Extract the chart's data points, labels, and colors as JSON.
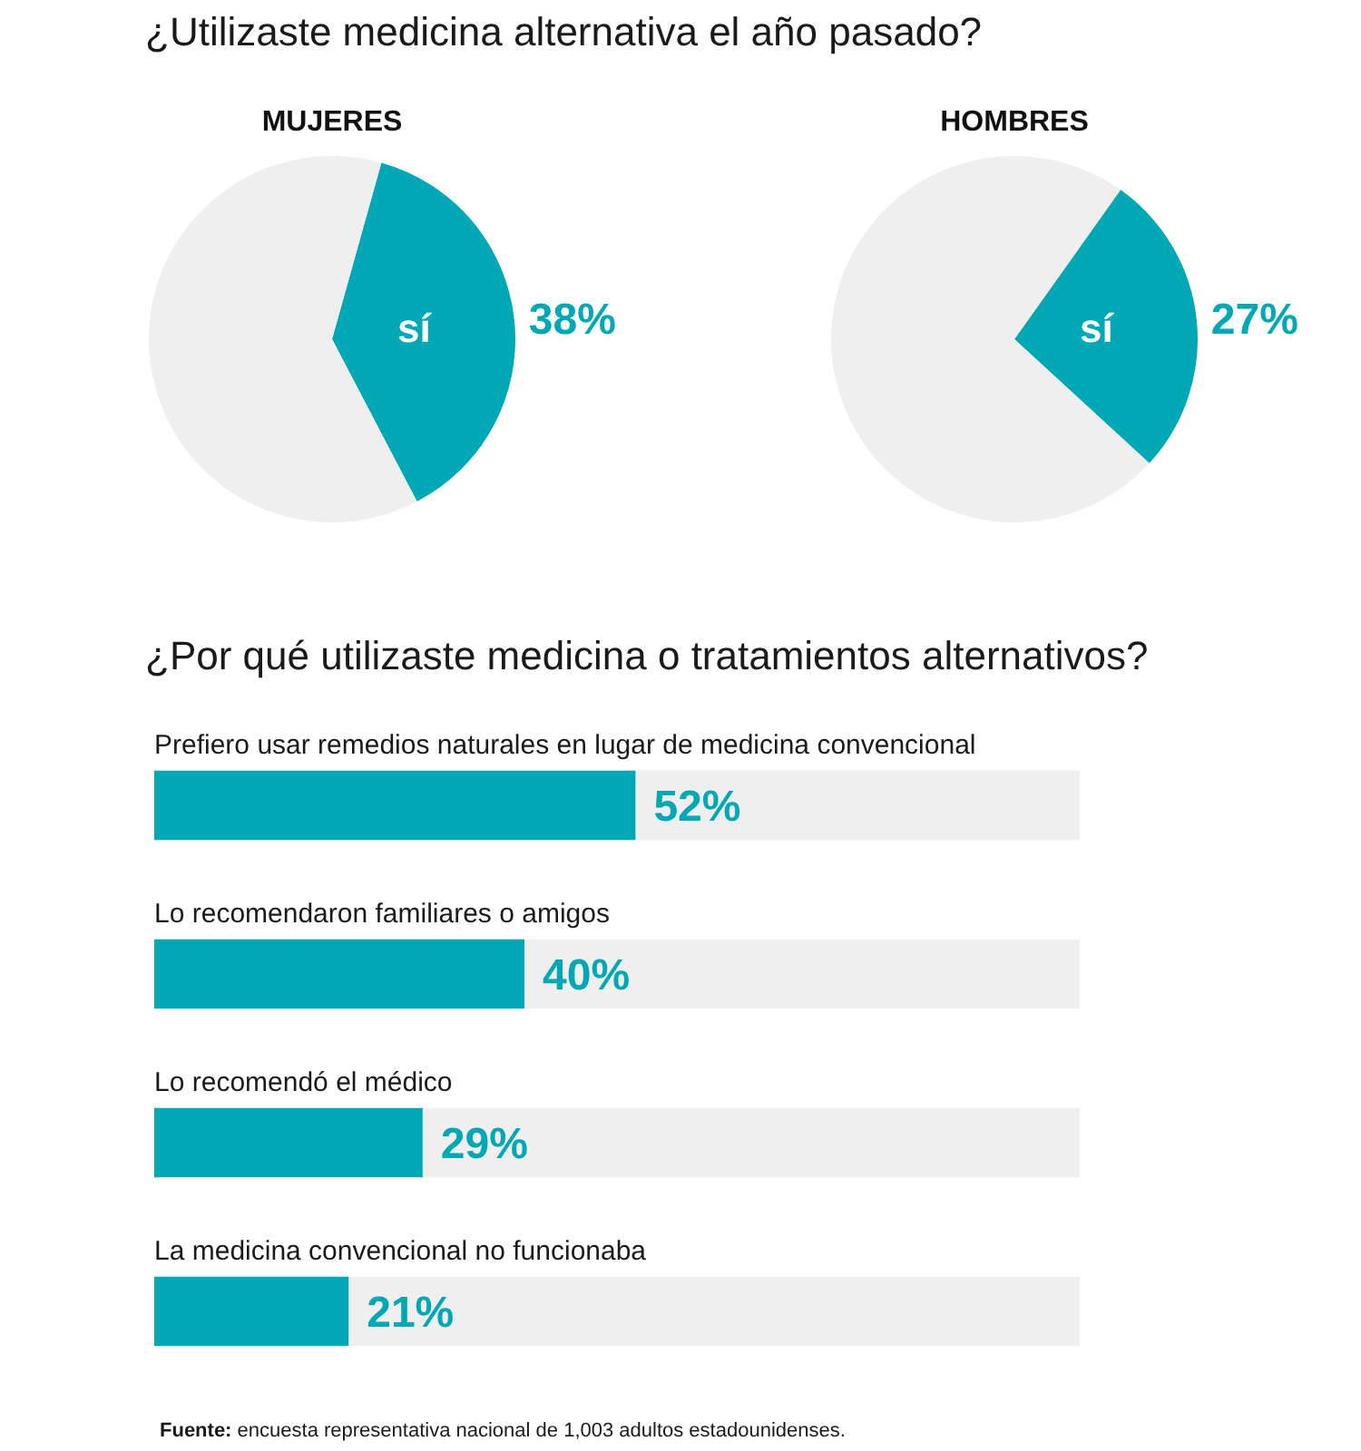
{
  "chart_data": [
    {
      "type": "pie",
      "title": "¿Utilizaste medicina alternativa el año pasado?",
      "subtitle": "MUJERES",
      "categories": [
        "sí",
        null
      ],
      "values": [
        38,
        62
      ],
      "colors": [
        "#00a8b5",
        "#efefef"
      ],
      "value_labels": [
        "38%",
        null
      ]
    },
    {
      "type": "pie",
      "subtitle": "HOMBRES",
      "categories": [
        "sí",
        null
      ],
      "values": [
        27,
        73
      ],
      "colors": [
        "#00a8b5",
        "#efefef"
      ],
      "value_labels": [
        "27%",
        null
      ]
    },
    {
      "type": "bar",
      "orientation": "horizontal",
      "stacked": true,
      "title": "¿Por qué utilizaste medicina o tratamientos alternativos?",
      "categories": [
        "Prefiero usar remedios naturales en lugar de medicina convencional",
        "Lo recomendaron familiares o amigos",
        "Lo recomendó el médico",
        "La medicina convencional no funcionaba"
      ],
      "series": [
        {
          "color": "#00a8b5",
          "values": [
            52,
            40,
            29,
            21
          ],
          "value_labels": [
            "52%",
            "40%",
            "29%",
            "21%"
          ]
        },
        {
          "color": "#efefef",
          "values": [
            48,
            60,
            71,
            79
          ]
        }
      ],
      "xlim": [
        0,
        100
      ],
      "tick_labels": "y",
      "annotations": [
        "Fuente: encuesta representativa nacional de 1,003 adultos estadounidenses."
      ]
    }
  ]
}
